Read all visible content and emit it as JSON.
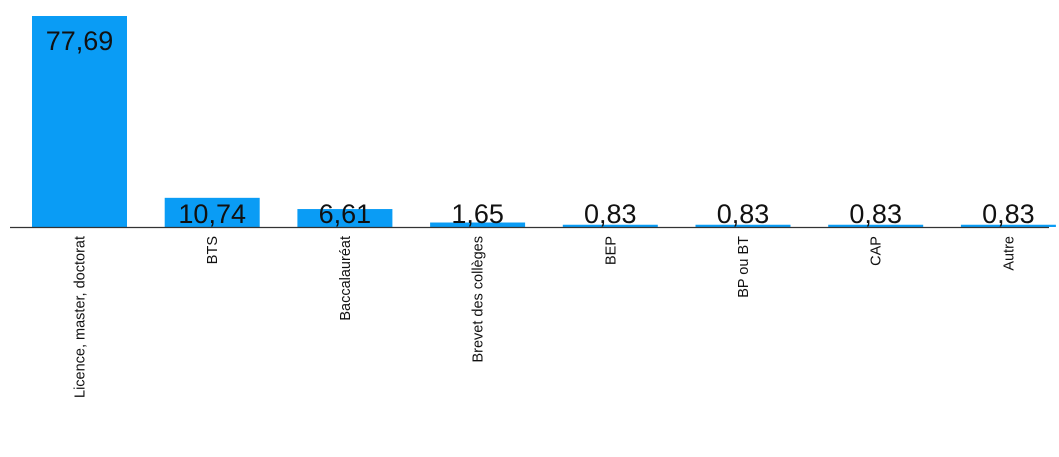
{
  "chart_data": {
    "type": "bar",
    "categories": [
      "Licence, master, doctorat",
      "BTS",
      "Baccalauréat",
      "Brevet des collèges",
      "BEP",
      "BP ou BT",
      "CAP",
      "Autre"
    ],
    "values": [
      77.69,
      10.74,
      6.61,
      1.65,
      0.83,
      0.83,
      0.83,
      0.83
    ],
    "value_labels": [
      "77,69",
      "10,74",
      "6,61",
      "1,65",
      "0,83",
      "0,83",
      "0,83",
      "0,83"
    ],
    "ylim": [
      0,
      77.69
    ],
    "grid": false,
    "legend": "none",
    "bar_color": "#0a9cf5"
  }
}
